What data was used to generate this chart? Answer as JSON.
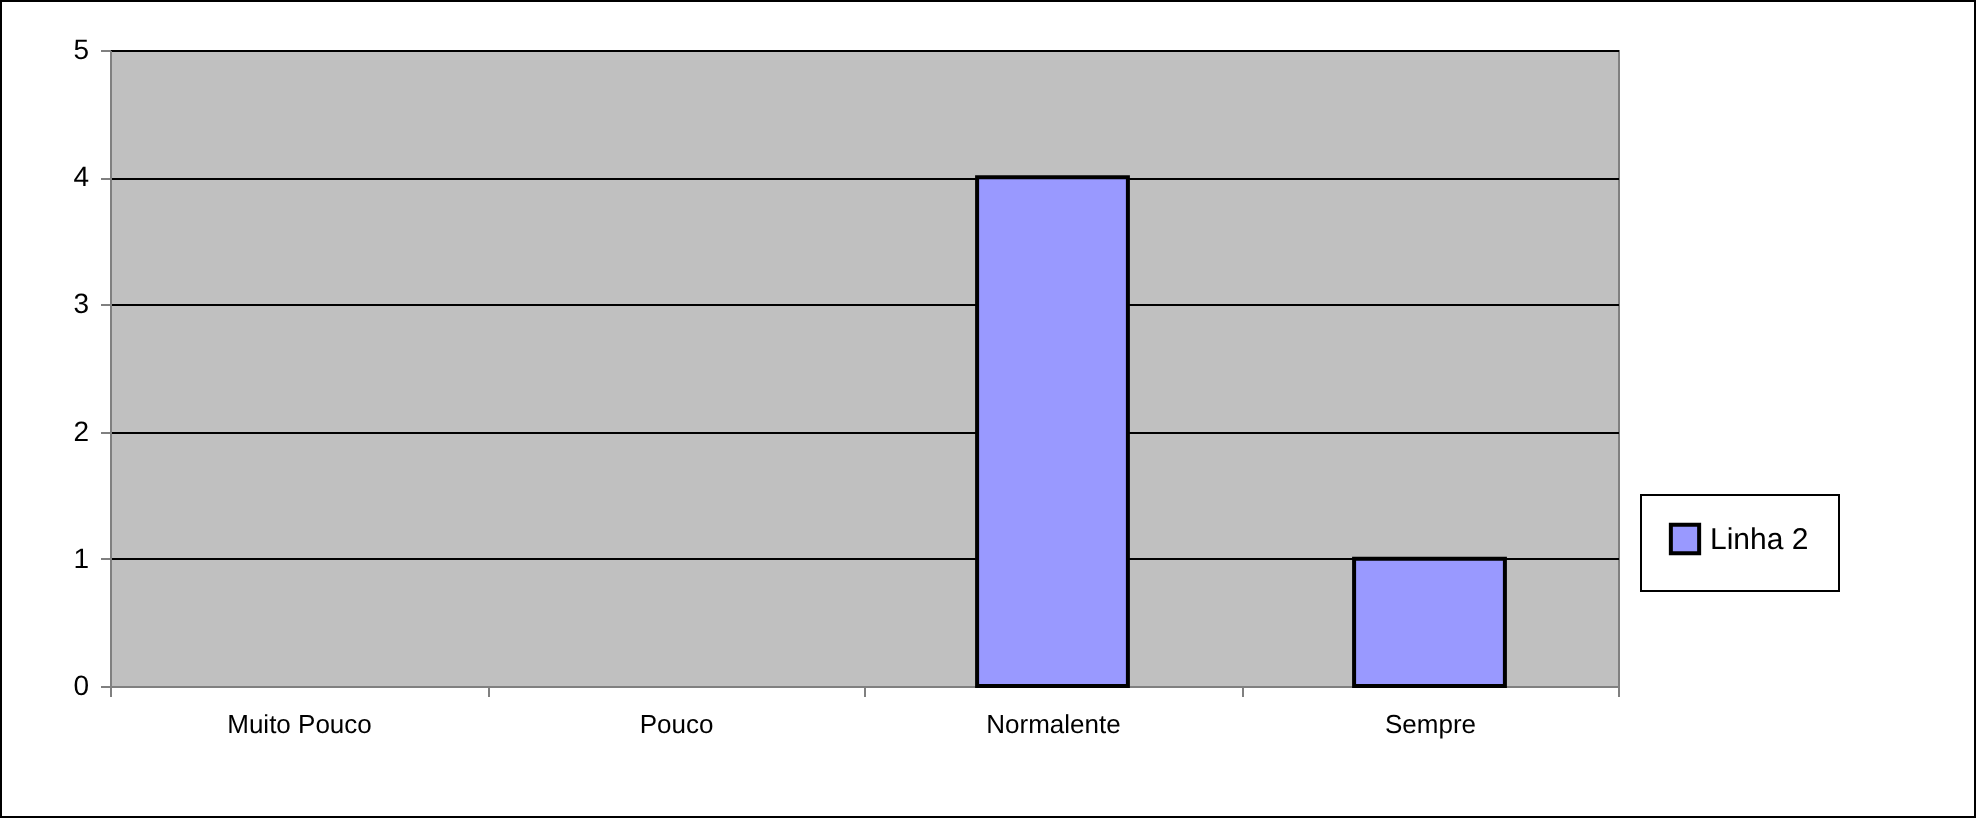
{
  "chart_data": {
    "type": "bar",
    "categories": [
      "Muito Pouco",
      "Pouco",
      "Normalente",
      "Sempre"
    ],
    "series": [
      {
        "name": "Linha 2",
        "color": "#9999ff",
        "values": [
          0,
          0,
          4,
          1
        ]
      }
    ],
    "ylim": [
      0,
      5
    ],
    "yticks": [
      0,
      1,
      2,
      3,
      4,
      5
    ],
    "grid": "y",
    "legend": "right"
  }
}
